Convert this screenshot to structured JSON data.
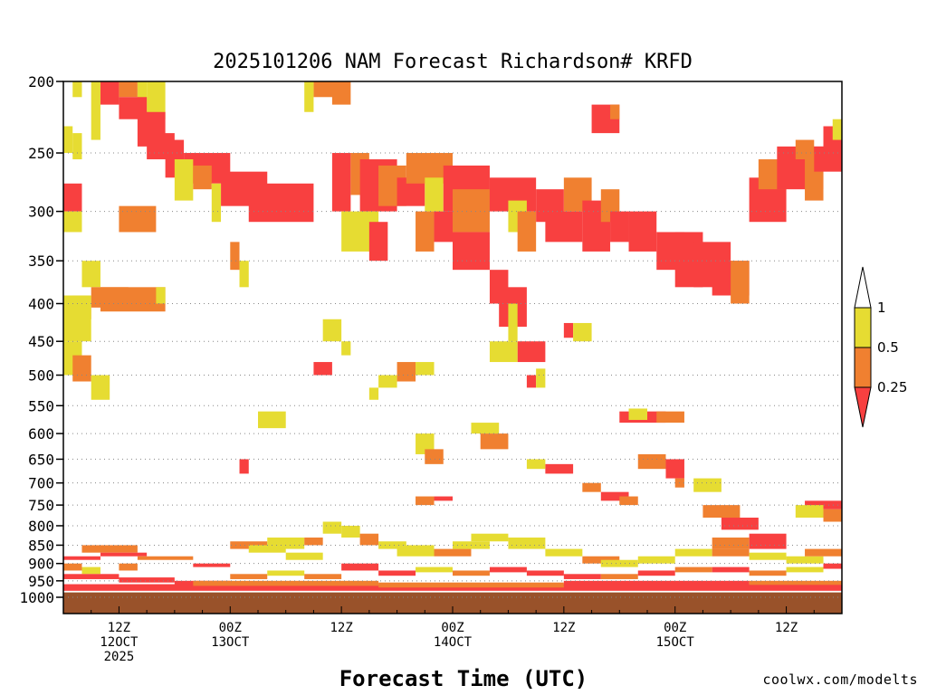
{
  "chart_data": {
    "type": "heatmap",
    "title": "2025101206 NAM Forecast Richardson# KRFD",
    "xlabel": "Forecast Time (UTC)",
    "ylabel": "",
    "y_axis": {
      "scale": "log",
      "reversed": true,
      "range": [
        200,
        1000
      ],
      "ticks": [
        "200",
        "250",
        "300",
        "350",
        "400",
        "450",
        "500",
        "550",
        "600",
        "650",
        "700",
        "750",
        "800",
        "850",
        "900",
        "950",
        "1000"
      ]
    },
    "x_axis": {
      "start_hour": 6,
      "end_hour": 90,
      "ticks": [
        {
          "hour": 12,
          "line1": "12Z",
          "line2": "12OCT",
          "line3": "2025"
        },
        {
          "hour": 24,
          "line1": "00Z",
          "line2": "13OCT",
          "line3": ""
        },
        {
          "hour": 36,
          "line1": "12Z",
          "line2": "",
          "line3": ""
        },
        {
          "hour": 48,
          "line1": "00Z",
          "line2": "14OCT",
          "line3": ""
        },
        {
          "hour": 60,
          "line1": "12Z",
          "line2": "",
          "line3": ""
        },
        {
          "hour": 72,
          "line1": "00Z",
          "line2": "15OCT",
          "line3": ""
        },
        {
          "hour": 84,
          "line1": "12Z",
          "line2": "",
          "line3": ""
        }
      ]
    },
    "grid": "dotted horizontal at pressure levels",
    "colorbar": {
      "levels": [
        "0.25",
        "0.5",
        "1"
      ],
      "colors": {
        "lt_025": "#f84040",
        "025_05": "#f08030",
        "05_1": "#e6dc32",
        "ge_1": "#ffffff"
      },
      "ground_color": "#99522a"
    },
    "cells": [
      [
        6,
        200,
        7,
        215,
        "ge"
      ],
      [
        7,
        200,
        8,
        210,
        "y"
      ],
      [
        10,
        200,
        12,
        215,
        "r"
      ],
      [
        12,
        200,
        14,
        210,
        "o"
      ],
      [
        14,
        200,
        15,
        220,
        "y"
      ],
      [
        15,
        200,
        17,
        225,
        "y"
      ],
      [
        9,
        200,
        10,
        240,
        "y"
      ],
      [
        12,
        210,
        15,
        225,
        "r"
      ],
      [
        14,
        220,
        17,
        245,
        "r"
      ],
      [
        15,
        235,
        18,
        255,
        "r"
      ],
      [
        17,
        240,
        19,
        270,
        "r"
      ],
      [
        19,
        250,
        24,
        275,
        "r"
      ],
      [
        23,
        265,
        28,
        295,
        "r"
      ],
      [
        26,
        275,
        33,
        310,
        "r"
      ],
      [
        6,
        230,
        7,
        250,
        "y"
      ],
      [
        7,
        235,
        8,
        255,
        "y"
      ],
      [
        6,
        275,
        8,
        300,
        "r"
      ],
      [
        6,
        300,
        8,
        320,
        "y"
      ],
      [
        12,
        295,
        16,
        320,
        "o"
      ],
      [
        8,
        350,
        10,
        380,
        "y"
      ],
      [
        9,
        380,
        13,
        405,
        "o"
      ],
      [
        7,
        390,
        9,
        420,
        "o"
      ],
      [
        10,
        380,
        17,
        410,
        "o"
      ],
      [
        6,
        390,
        9,
        450,
        "y"
      ],
      [
        6,
        450,
        8,
        500,
        "y"
      ],
      [
        7,
        470,
        9,
        510,
        "o"
      ],
      [
        9,
        500,
        11,
        540,
        "y"
      ],
      [
        16,
        380,
        17,
        400,
        "y"
      ],
      [
        18,
        255,
        20,
        290,
        "y"
      ],
      [
        20,
        260,
        22,
        280,
        "o"
      ],
      [
        22,
        275,
        23,
        310,
        "y"
      ],
      [
        24,
        330,
        25,
        360,
        "o"
      ],
      [
        25,
        350,
        26,
        380,
        "y"
      ],
      [
        33,
        200,
        36,
        210,
        "o"
      ],
      [
        32,
        200,
        33,
        220,
        "y"
      ],
      [
        35,
        200,
        37,
        215,
        "o"
      ],
      [
        35,
        250,
        37,
        300,
        "r"
      ],
      [
        37,
        250,
        39,
        285,
        "o"
      ],
      [
        38,
        255,
        42,
        300,
        "r"
      ],
      [
        40,
        260,
        43,
        295,
        "o"
      ],
      [
        42,
        270,
        45,
        295,
        "r"
      ],
      [
        36,
        300,
        40,
        340,
        "y"
      ],
      [
        39,
        310,
        41,
        350,
        "r"
      ],
      [
        43,
        250,
        48,
        275,
        "o"
      ],
      [
        45,
        270,
        47,
        300,
        "y"
      ],
      [
        47,
        260,
        52,
        300,
        "r"
      ],
      [
        44,
        300,
        46,
        340,
        "o"
      ],
      [
        46,
        300,
        48,
        330,
        "r"
      ],
      [
        48,
        280,
        52,
        320,
        "o"
      ],
      [
        48,
        320,
        52,
        360,
        "r"
      ],
      [
        52,
        270,
        57,
        300,
        "r"
      ],
      [
        54,
        290,
        56,
        320,
        "y"
      ],
      [
        55,
        300,
        57,
        340,
        "o"
      ],
      [
        57,
        280,
        60,
        310,
        "r"
      ],
      [
        58,
        300,
        62,
        330,
        "r"
      ],
      [
        60,
        270,
        63,
        300,
        "o"
      ],
      [
        62,
        290,
        65,
        340,
        "r"
      ],
      [
        64,
        280,
        66,
        310,
        "o"
      ],
      [
        65,
        300,
        67,
        330,
        "r"
      ],
      [
        63,
        215,
        66,
        235,
        "r"
      ],
      [
        65,
        215,
        66,
        225,
        "o"
      ],
      [
        67,
        300,
        70,
        340,
        "r"
      ],
      [
        70,
        320,
        73,
        360,
        "r"
      ],
      [
        72,
        320,
        75,
        380,
        "r"
      ],
      [
        74,
        330,
        78,
        380,
        "r"
      ],
      [
        76,
        350,
        80,
        390,
        "r"
      ],
      [
        78,
        350,
        80,
        400,
        "o"
      ],
      [
        80,
        270,
        84,
        310,
        "r"
      ],
      [
        81,
        255,
        84,
        280,
        "o"
      ],
      [
        83,
        245,
        88,
        280,
        "r"
      ],
      [
        85,
        240,
        87,
        255,
        "o"
      ],
      [
        86,
        250,
        88,
        290,
        "o"
      ],
      [
        87,
        245,
        90,
        265,
        "r"
      ],
      [
        88,
        230,
        90,
        255,
        "r"
      ],
      [
        89,
        225,
        90,
        240,
        "y"
      ],
      [
        52,
        360,
        54,
        400,
        "r"
      ],
      [
        53,
        380,
        56,
        430,
        "r"
      ],
      [
        54,
        400,
        55,
        450,
        "y"
      ],
      [
        55,
        450,
        58,
        480,
        "r"
      ],
      [
        52,
        450,
        55,
        480,
        "y"
      ],
      [
        56,
        500,
        57,
        520,
        "r"
      ],
      [
        57,
        490,
        58,
        520,
        "y"
      ],
      [
        42,
        480,
        44,
        510,
        "o"
      ],
      [
        44,
        480,
        46,
        500,
        "y"
      ],
      [
        60,
        425,
        61,
        445,
        "r"
      ],
      [
        61,
        425,
        63,
        450,
        "y"
      ],
      [
        66,
        560,
        71,
        580,
        "r"
      ],
      [
        70,
        560,
        73,
        580,
        "o"
      ],
      [
        67,
        555,
        69,
        575,
        "y"
      ],
      [
        50,
        580,
        53,
        600,
        "y"
      ],
      [
        51,
        600,
        54,
        630,
        "o"
      ],
      [
        44,
        600,
        46,
        640,
        "y"
      ],
      [
        45,
        630,
        47,
        660,
        "o"
      ],
      [
        58,
        660,
        61,
        680,
        "r"
      ],
      [
        56,
        650,
        58,
        670,
        "y"
      ],
      [
        68,
        640,
        71,
        670,
        "o"
      ],
      [
        71,
        650,
        73,
        690,
        "r"
      ],
      [
        72,
        690,
        73,
        710,
        "o"
      ],
      [
        62,
        700,
        64,
        720,
        "o"
      ],
      [
        64,
        720,
        67,
        740,
        "r"
      ],
      [
        66,
        730,
        68,
        750,
        "o"
      ],
      [
        74,
        690,
        77,
        720,
        "y"
      ],
      [
        75,
        750,
        79,
        780,
        "o"
      ],
      [
        77,
        780,
        81,
        810,
        "r"
      ],
      [
        80,
        820,
        84,
        860,
        "r"
      ],
      [
        76,
        830,
        80,
        860,
        "o"
      ],
      [
        86,
        740,
        90,
        760,
        "r"
      ],
      [
        85,
        750,
        88,
        780,
        "y"
      ],
      [
        88,
        760,
        90,
        790,
        "o"
      ],
      [
        39,
        520,
        40,
        540,
        "y"
      ],
      [
        40,
        500,
        42,
        520,
        "y"
      ],
      [
        34,
        420,
        36,
        450,
        "y"
      ],
      [
        36,
        450,
        37,
        470,
        "y"
      ],
      [
        33,
        480,
        35,
        500,
        "r"
      ],
      [
        27,
        560,
        30,
        590,
        "y"
      ],
      [
        25,
        650,
        26,
        680,
        "r"
      ],
      [
        44,
        730,
        46,
        750,
        "o"
      ],
      [
        46,
        730,
        48,
        740,
        "r"
      ],
      [
        8,
        850,
        14,
        870,
        "o"
      ],
      [
        6,
        880,
        10,
        890,
        "r"
      ],
      [
        10,
        870,
        15,
        880,
        "r"
      ],
      [
        14,
        880,
        20,
        890,
        "o"
      ],
      [
        20,
        900,
        24,
        910,
        "r"
      ],
      [
        6,
        900,
        8,
        920,
        "o"
      ],
      [
        8,
        910,
        10,
        930,
        "y"
      ],
      [
        12,
        900,
        14,
        920,
        "o"
      ],
      [
        24,
        840,
        28,
        860,
        "o"
      ],
      [
        26,
        850,
        30,
        870,
        "y"
      ],
      [
        28,
        830,
        32,
        860,
        "y"
      ],
      [
        30,
        870,
        34,
        890,
        "y"
      ],
      [
        32,
        830,
        34,
        850,
        "o"
      ],
      [
        34,
        790,
        36,
        820,
        "y"
      ],
      [
        36,
        800,
        38,
        830,
        "y"
      ],
      [
        38,
        820,
        40,
        850,
        "o"
      ],
      [
        40,
        840,
        43,
        860,
        "y"
      ],
      [
        42,
        850,
        46,
        880,
        "y"
      ],
      [
        46,
        860,
        50,
        880,
        "o"
      ],
      [
        48,
        840,
        52,
        860,
        "y"
      ],
      [
        50,
        820,
        54,
        840,
        "y"
      ],
      [
        54,
        830,
        58,
        860,
        "y"
      ],
      [
        58,
        860,
        62,
        880,
        "y"
      ],
      [
        62,
        880,
        66,
        900,
        "o"
      ],
      [
        64,
        890,
        68,
        910,
        "y"
      ],
      [
        68,
        880,
        72,
        900,
        "y"
      ],
      [
        72,
        860,
        76,
        880,
        "y"
      ],
      [
        76,
        860,
        80,
        880,
        "o"
      ],
      [
        80,
        870,
        84,
        890,
        "y"
      ],
      [
        84,
        880,
        88,
        900,
        "y"
      ],
      [
        86,
        860,
        90,
        880,
        "o"
      ],
      [
        6,
        930,
        12,
        945,
        "r"
      ],
      [
        12,
        940,
        18,
        955,
        "r"
      ],
      [
        18,
        950,
        24,
        965,
        "r"
      ],
      [
        24,
        930,
        28,
        945,
        "o"
      ],
      [
        28,
        920,
        32,
        935,
        "y"
      ],
      [
        32,
        930,
        36,
        945,
        "o"
      ],
      [
        36,
        900,
        40,
        920,
        "r"
      ],
      [
        40,
        920,
        44,
        935,
        "r"
      ],
      [
        44,
        910,
        48,
        925,
        "y"
      ],
      [
        48,
        920,
        52,
        935,
        "o"
      ],
      [
        52,
        910,
        56,
        925,
        "r"
      ],
      [
        56,
        920,
        60,
        935,
        "r"
      ],
      [
        60,
        930,
        64,
        945,
        "r"
      ],
      [
        64,
        930,
        68,
        945,
        "o"
      ],
      [
        68,
        920,
        72,
        935,
        "r"
      ],
      [
        72,
        910,
        76,
        925,
        "o"
      ],
      [
        76,
        910,
        80,
        925,
        "r"
      ],
      [
        80,
        920,
        84,
        935,
        "o"
      ],
      [
        84,
        910,
        88,
        925,
        "y"
      ],
      [
        88,
        900,
        90,
        915,
        "r"
      ],
      [
        6,
        960,
        90,
        980,
        "r"
      ],
      [
        20,
        950,
        40,
        965,
        "o"
      ],
      [
        40,
        955,
        60,
        970,
        "o"
      ],
      [
        60,
        950,
        80,
        965,
        "r"
      ],
      [
        80,
        950,
        90,
        962,
        "o"
      ]
    ]
  },
  "credit": "coolwx.com/modelts"
}
